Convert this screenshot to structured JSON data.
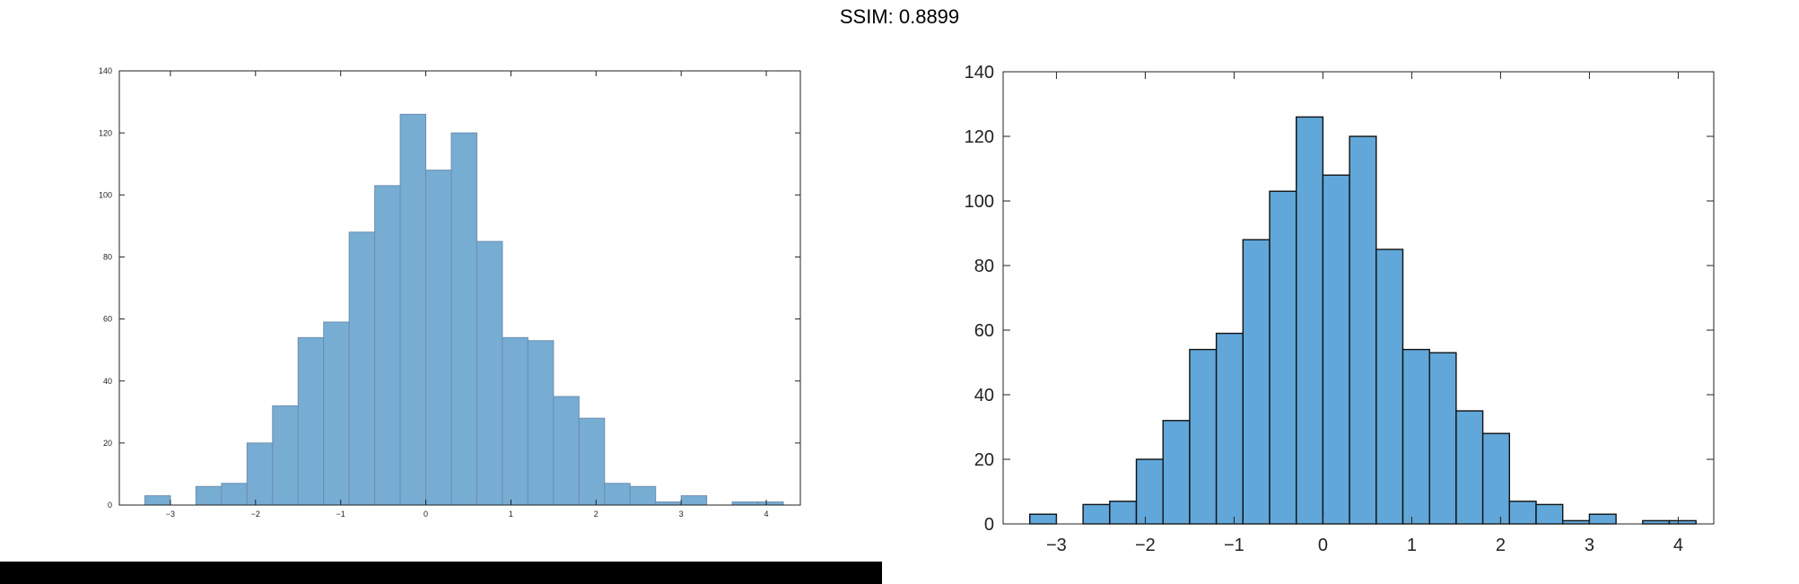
{
  "title": "SSIM: 0.8899",
  "colors": {
    "left_bar_fill": "#77acd3",
    "left_bar_edge": "#6d8fae",
    "right_bar_fill": "#61a7d9",
    "right_bar_edge": "#111111",
    "axis": "#222222",
    "black_bar": "#000000"
  },
  "chart_data": [
    {
      "type": "bar",
      "style": "histogram",
      "bin_edges": [
        -3.3,
        -3.0,
        -2.7,
        -2.4,
        -2.1,
        -1.8,
        -1.5,
        -1.2,
        -0.9,
        -0.6,
        -0.3,
        0.0,
        0.3,
        0.6,
        0.9,
        1.2,
        1.5,
        1.8,
        2.1,
        2.4,
        2.7,
        3.0,
        3.3,
        3.6,
        3.9,
        4.2
      ],
      "values": [
        3,
        0,
        6,
        7,
        20,
        32,
        54,
        59,
        88,
        103,
        126,
        108,
        120,
        85,
        54,
        53,
        35,
        28,
        7,
        6,
        1,
        3,
        0,
        1,
        1
      ],
      "xlim": [
        -3.6,
        4.4
      ],
      "ylim": [
        0,
        140
      ],
      "xticks": [
        "-3",
        "-2",
        "-1",
        "0",
        "1",
        "2",
        "3",
        "4"
      ],
      "yticks": [
        "0",
        "20",
        "40",
        "60",
        "80",
        "100",
        "120",
        "140"
      ],
      "xlabel": "",
      "ylabel": "",
      "grid": false
    },
    {
      "type": "bar",
      "style": "histogram",
      "bin_edges": [
        -3.3,
        -3.0,
        -2.7,
        -2.4,
        -2.1,
        -1.8,
        -1.5,
        -1.2,
        -0.9,
        -0.6,
        -0.3,
        0.0,
        0.3,
        0.6,
        0.9,
        1.2,
        1.5,
        1.8,
        2.1,
        2.4,
        2.7,
        3.0,
        3.3,
        3.6,
        3.9,
        4.2
      ],
      "values": [
        3,
        0,
        6,
        7,
        20,
        32,
        54,
        59,
        88,
        103,
        126,
        108,
        120,
        85,
        54,
        53,
        35,
        28,
        7,
        6,
        1,
        3,
        0,
        1,
        1
      ],
      "xlim": [
        -3.6,
        4.4
      ],
      "ylim": [
        0,
        140
      ],
      "xticks": [
        "-3",
        "-2",
        "-1",
        "0",
        "1",
        "2",
        "3",
        "4"
      ],
      "yticks": [
        "0",
        "20",
        "40",
        "60",
        "80",
        "100",
        "120",
        "140"
      ],
      "xlabel": "",
      "ylabel": "",
      "grid": false
    }
  ]
}
